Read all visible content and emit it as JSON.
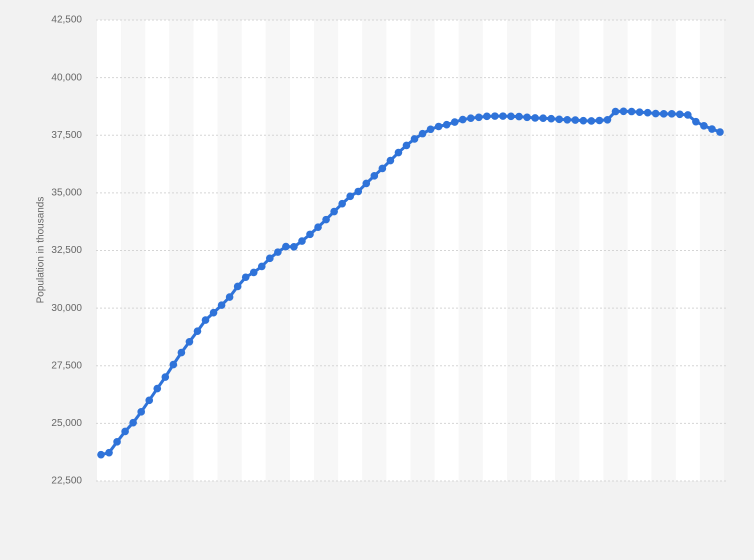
{
  "chart_data": {
    "type": "line",
    "y_label": "Population in thousands",
    "categories": [
      null,
      null,
      null,
      null,
      null,
      null,
      null,
      null,
      null,
      null,
      null,
      null,
      null,
      null,
      null,
      null,
      null,
      null,
      null,
      null,
      null,
      null,
      null,
      null,
      null,
      null,
      null,
      null,
      null,
      null,
      null,
      null,
      null,
      null,
      null,
      null,
      null,
      null,
      null,
      null,
      null,
      null,
      null,
      null,
      null,
      null,
      null,
      null,
      null,
      null,
      null,
      null,
      null,
      null,
      null,
      null,
      null,
      null,
      null,
      null,
      null,
      null,
      null,
      null,
      null,
      null,
      null,
      null,
      null,
      null,
      null,
      null,
      null,
      null,
      null,
      null,
      null,
      null
    ],
    "series": [
      {
        "name": "Population",
        "color": "#2f73d9",
        "values": [
          23640,
          23730,
          24200,
          24650,
          25030,
          25500,
          26000,
          26510,
          27010,
          27550,
          28070,
          28540,
          29000,
          29480,
          29800,
          30130,
          30480,
          30940,
          31340,
          31550,
          31810,
          32160,
          32430,
          32670,
          32660,
          32910,
          33200,
          33510,
          33840,
          34190,
          34530,
          34850,
          35060,
          35410,
          35740,
          36060,
          36400,
          36750,
          37060,
          37340,
          37570,
          37760,
          37880,
          37960,
          38070,
          38180,
          38240,
          38280,
          38320,
          38330,
          38330,
          38320,
          38310,
          38280,
          38250,
          38240,
          38220,
          38190,
          38170,
          38160,
          38130,
          38120,
          38140,
          38170,
          38530,
          38540,
          38530,
          38500,
          38480,
          38440,
          38430,
          38430,
          38410,
          38380,
          38090,
          37910,
          37770,
          37640
        ]
      }
    ],
    "ylim": [
      22500,
      42500
    ],
    "yticks": [
      {
        "value": 22500,
        "label": "22,500"
      },
      {
        "value": 25000,
        "label": "25,000"
      },
      {
        "value": 27500,
        "label": "27,500"
      },
      {
        "value": 30000,
        "label": "30,000"
      },
      {
        "value": 32500,
        "label": "32,500"
      },
      {
        "value": 35000,
        "label": "35,000"
      },
      {
        "value": 37500,
        "label": "37,500"
      },
      {
        "value": 40000,
        "label": "40,000"
      },
      {
        "value": 42500,
        "label": "42,500"
      }
    ],
    "grid": true
  }
}
